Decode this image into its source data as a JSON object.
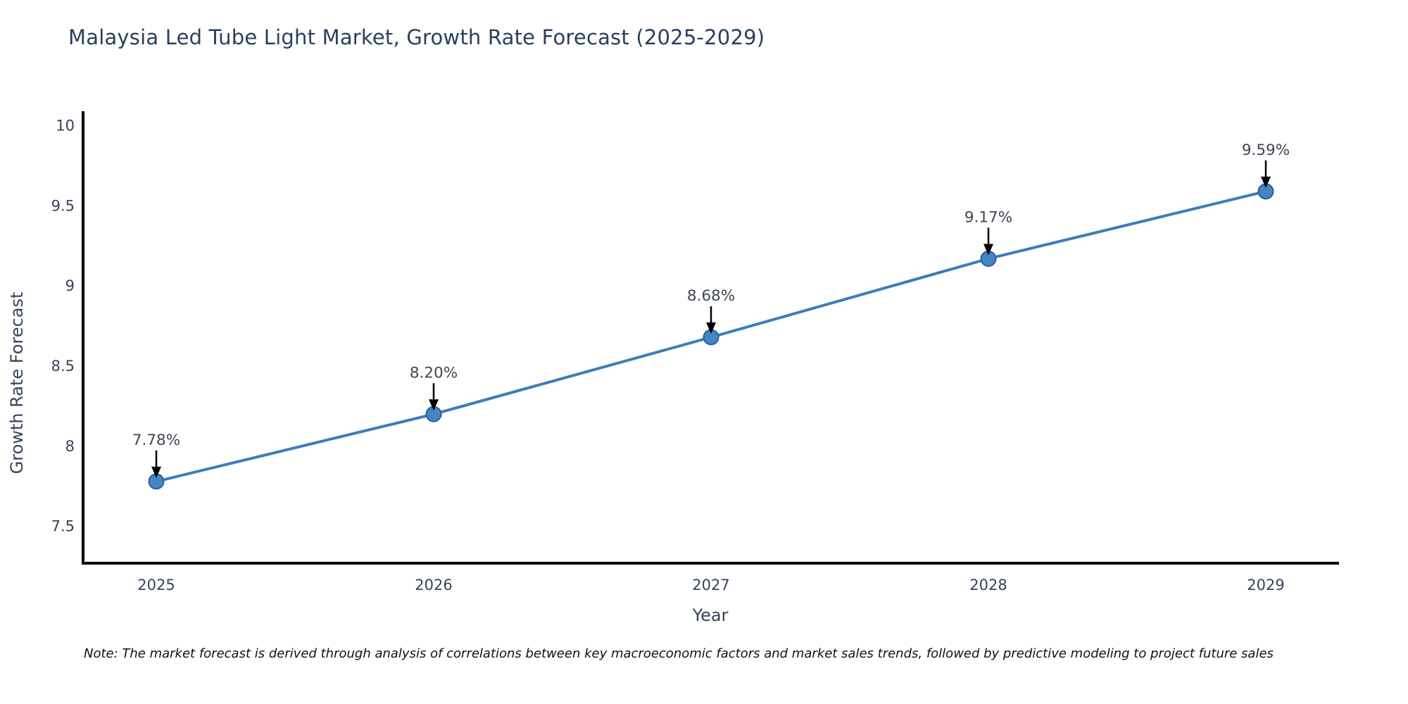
{
  "title": "Malaysia Led Tube Light Market, Growth Rate Forecast (2025-2029)",
  "note": "Note: The market forecast is derived through analysis of correlations between key macroeconomic factors and market sales trends, followed by predictive modeling to project future sales",
  "chart_data": {
    "type": "line",
    "title": "Malaysia Led Tube Light Market, Growth Rate Forecast (2025-2029)",
    "categories": [
      "2025",
      "2026",
      "2027",
      "2028",
      "2029"
    ],
    "values": [
      7.78,
      8.2,
      8.68,
      9.17,
      9.59
    ],
    "point_labels": [
      "7.78%",
      "8.20%",
      "8.68%",
      "9.17%",
      "9.59%"
    ],
    "xlabel": "Year",
    "ylabel": "Growth Rate Forecast",
    "ylim": [
      7.27,
      10.09
    ],
    "yticks": [
      7.5,
      8,
      8.5,
      9,
      9.5,
      10
    ],
    "ytick_labels": [
      "7.5",
      "8",
      "8.5",
      "9",
      "9.5",
      "10"
    ],
    "grid": false,
    "legend_position": "none",
    "colors": {
      "line": "#3f7cb9",
      "marker_fill": "#4485c5",
      "marker_edge": "#2f5f94",
      "axis": "#000000",
      "tick_text": "#36435a",
      "title_text": "#2a3f5f",
      "annotation_text": "#3f4652",
      "arrow": "#000000"
    }
  }
}
